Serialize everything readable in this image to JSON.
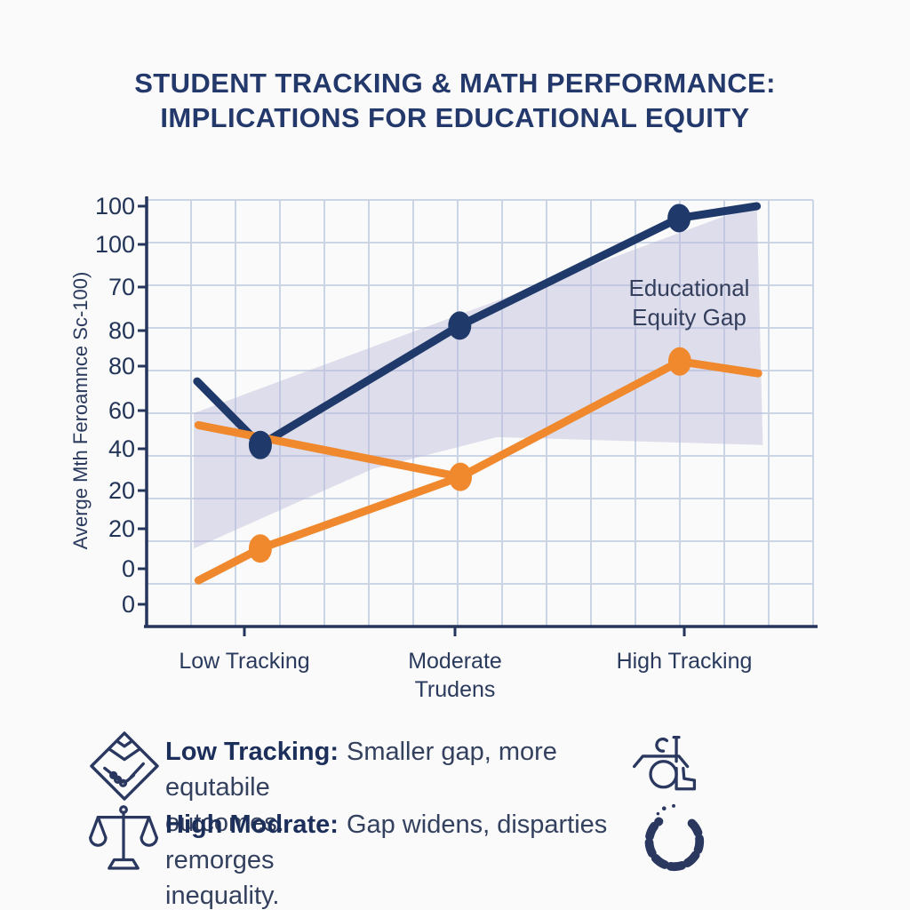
{
  "title": {
    "line1": "STUDENT TRACKING & MATH PERFORMANCE:",
    "line2": "IMPLICATIONS FOR EDUCATIONAL EQUITY"
  },
  "chart_data": {
    "type": "line",
    "title": "STUDENT TRACKING & MATH PERFORMANCE: IMPLICATIONS FOR EDUCATIONAL EQUITY",
    "ylabel": "Averge Mth Feroamnce Sc-100)",
    "xlabel": "",
    "categories": [
      "Low Tracking",
      "Moderate Trudens",
      "High Tracking"
    ],
    "ytick_labels": [
      "100",
      "100",
      "70",
      "80",
      "80",
      "60",
      "40",
      "20",
      "20",
      "0",
      "0"
    ],
    "ylim": [
      0,
      100
    ],
    "grid": true,
    "series": [
      {
        "name": "navy-line",
        "color": "#1f3a6a",
        "values_at_categories": [
          40,
          70,
          97
        ],
        "points": [
          [
            0.076,
            56
          ],
          [
            0.171,
            40
          ],
          [
            0.471,
            70
          ],
          [
            0.801,
            97
          ],
          [
            0.918,
            100
          ]
        ],
        "markers": [
          1,
          2,
          3
        ]
      },
      {
        "name": "orange-line",
        "color": "#f0892d",
        "values_at_categories": [
          14,
          32,
          61
        ],
        "points": [
          [
            0.078,
            6
          ],
          [
            0.171,
            14
          ],
          [
            0.472,
            32
          ],
          [
            0.802,
            61
          ],
          [
            0.92,
            58
          ]
        ],
        "markers": [
          1,
          2,
          3
        ]
      },
      {
        "name": "orange-branch",
        "color": "#f0892d",
        "values_at_categories": [],
        "points": [
          [
            0.078,
            45
          ],
          [
            0.472,
            32
          ]
        ],
        "markers": []
      }
    ],
    "band": {
      "label": "Educational Equity Gap",
      "color": "#b7b4d6",
      "opacity": 0.42,
      "polygon": [
        [
          0.071,
          14
        ],
        [
          0.071,
          48
        ],
        [
          0.918,
          100.5
        ],
        [
          0.927,
          40
        ],
        [
          0.527,
          42
        ],
        [
          0.34,
          34
        ]
      ]
    }
  },
  "legend": {
    "items": [
      {
        "icon": "handshake-icon",
        "bold": "Low Tracking:",
        "line1": "Smaller gap, more equtabile",
        "line2": "outcomes."
      },
      {
        "icon": "scales-icon",
        "bold": "High Modrate:",
        "line1": "Gap widens, disparties remorges",
        "line2": "inequality."
      }
    ]
  },
  "colors": {
    "navy": "#1f3a6a",
    "orange": "#f0892d",
    "band": "#b7b4d6",
    "grid": "#ccd5e5",
    "axis": "#25355c",
    "title_text": "#24396b"
  }
}
